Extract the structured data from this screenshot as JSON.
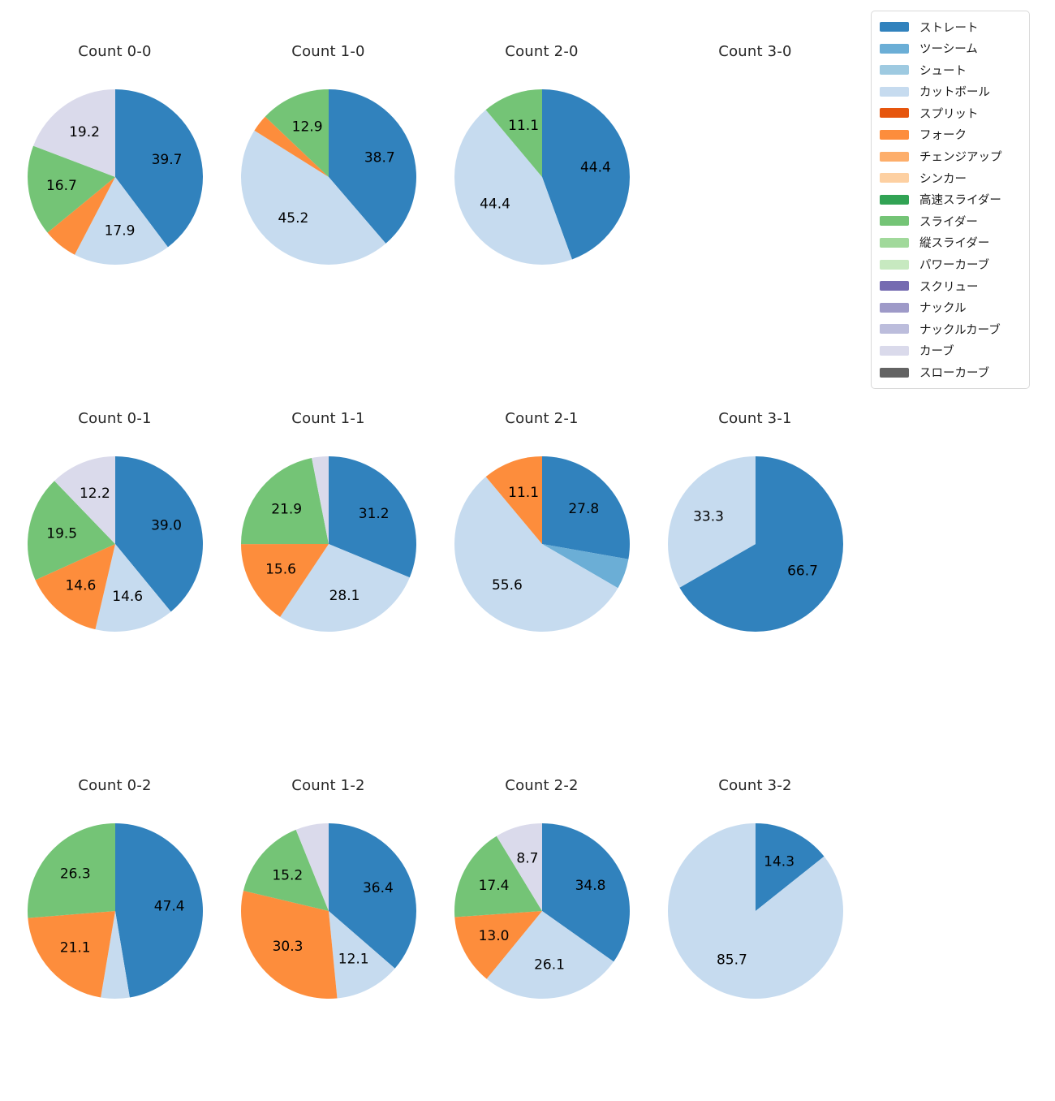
{
  "legend": {
    "items": [
      {
        "label": "ストレート",
        "color": "#3182bd"
      },
      {
        "label": "ツーシーム",
        "color": "#6baed6"
      },
      {
        "label": "シュート",
        "color": "#9ecae1"
      },
      {
        "label": "カットボール",
        "color": "#c6dbef"
      },
      {
        "label": "スプリット",
        "color": "#e6550d"
      },
      {
        "label": "フォーク",
        "color": "#fd8d3c"
      },
      {
        "label": "チェンジアップ",
        "color": "#fdae6b"
      },
      {
        "label": "シンカー",
        "color": "#fdd0a2"
      },
      {
        "label": "高速スライダー",
        "color": "#31a354"
      },
      {
        "label": "スライダー",
        "color": "#74c476"
      },
      {
        "label": "縦スライダー",
        "color": "#a1d99b"
      },
      {
        "label": "パワーカーブ",
        "color": "#c7e9c0"
      },
      {
        "label": "スクリュー",
        "color": "#756bb1"
      },
      {
        "label": "ナックル",
        "color": "#9e9ac8"
      },
      {
        "label": "ナックルカーブ",
        "color": "#bcbddc"
      },
      {
        "label": "カーブ",
        "color": "#dadaeb"
      },
      {
        "label": "スローカーブ",
        "color": "#636363"
      }
    ]
  },
  "chart_data": [
    {
      "type": "pie",
      "title": "Count 0-0",
      "start_angle": 90,
      "clockwise": true,
      "slices": [
        {
          "name": "ストレート",
          "value": 39.7,
          "label": "39.7"
        },
        {
          "name": "カットボール",
          "value": 17.9,
          "label": "17.9"
        },
        {
          "name": "フォーク",
          "value": 6.4,
          "label": ""
        },
        {
          "name": "スライダー",
          "value": 16.7,
          "label": "16.7"
        },
        {
          "name": "カーブ",
          "value": 19.2,
          "label": "19.2"
        }
      ]
    },
    {
      "type": "pie",
      "title": "Count 1-0",
      "start_angle": 90,
      "clockwise": true,
      "slices": [
        {
          "name": "ストレート",
          "value": 38.7,
          "label": "38.7"
        },
        {
          "name": "カットボール",
          "value": 45.2,
          "label": "45.2"
        },
        {
          "name": "フォーク",
          "value": 3.2,
          "label": ""
        },
        {
          "name": "スライダー",
          "value": 12.9,
          "label": "12.9"
        }
      ]
    },
    {
      "type": "pie",
      "title": "Count 2-0",
      "start_angle": 90,
      "clockwise": true,
      "slices": [
        {
          "name": "ストレート",
          "value": 44.4,
          "label": "44.4"
        },
        {
          "name": "カットボール",
          "value": 44.4,
          "label": "44.4"
        },
        {
          "name": "スライダー",
          "value": 11.1,
          "label": "11.1"
        }
      ]
    },
    {
      "type": "pie",
      "title": "Count 3-0",
      "start_angle": 90,
      "clockwise": true,
      "slices": []
    },
    {
      "type": "pie",
      "title": "Count 0-1",
      "start_angle": 90,
      "clockwise": true,
      "slices": [
        {
          "name": "ストレート",
          "value": 39.0,
          "label": "39.0"
        },
        {
          "name": "カットボール",
          "value": 14.6,
          "label": "14.6"
        },
        {
          "name": "フォーク",
          "value": 14.6,
          "label": "14.6"
        },
        {
          "name": "スライダー",
          "value": 19.5,
          "label": "19.5"
        },
        {
          "name": "カーブ",
          "value": 12.2,
          "label": "12.2"
        }
      ]
    },
    {
      "type": "pie",
      "title": "Count 1-1",
      "start_angle": 90,
      "clockwise": true,
      "slices": [
        {
          "name": "ストレート",
          "value": 31.2,
          "label": "31.2"
        },
        {
          "name": "カットボール",
          "value": 28.1,
          "label": "28.1"
        },
        {
          "name": "フォーク",
          "value": 15.6,
          "label": "15.6"
        },
        {
          "name": "スライダー",
          "value": 21.9,
          "label": "21.9"
        },
        {
          "name": "カーブ",
          "value": 3.1,
          "label": ""
        }
      ]
    },
    {
      "type": "pie",
      "title": "Count 2-1",
      "start_angle": 90,
      "clockwise": true,
      "slices": [
        {
          "name": "ストレート",
          "value": 27.8,
          "label": "27.8"
        },
        {
          "name": "ツーシーム",
          "value": 5.6,
          "label": ""
        },
        {
          "name": "カットボール",
          "value": 55.6,
          "label": "55.6"
        },
        {
          "name": "フォーク",
          "value": 11.1,
          "label": "11.1"
        }
      ]
    },
    {
      "type": "pie",
      "title": "Count 3-1",
      "start_angle": 90,
      "clockwise": true,
      "slices": [
        {
          "name": "ストレート",
          "value": 66.7,
          "label": "66.7"
        },
        {
          "name": "カットボール",
          "value": 33.3,
          "label": "33.3"
        }
      ]
    },
    {
      "type": "pie",
      "title": "Count 0-2",
      "start_angle": 90,
      "clockwise": true,
      "slices": [
        {
          "name": "ストレート",
          "value": 47.4,
          "label": "47.4"
        },
        {
          "name": "カットボール",
          "value": 5.3,
          "label": ""
        },
        {
          "name": "フォーク",
          "value": 21.1,
          "label": "21.1"
        },
        {
          "name": "スライダー",
          "value": 26.3,
          "label": "26.3"
        }
      ]
    },
    {
      "type": "pie",
      "title": "Count 1-2",
      "start_angle": 90,
      "clockwise": true,
      "slices": [
        {
          "name": "ストレート",
          "value": 36.4,
          "label": "36.4"
        },
        {
          "name": "カットボール",
          "value": 12.1,
          "label": "12.1"
        },
        {
          "name": "フォーク",
          "value": 30.3,
          "label": "30.3"
        },
        {
          "name": "スライダー",
          "value": 15.2,
          "label": "15.2"
        },
        {
          "name": "カーブ",
          "value": 6.1,
          "label": ""
        }
      ]
    },
    {
      "type": "pie",
      "title": "Count 2-2",
      "start_angle": 90,
      "clockwise": true,
      "slices": [
        {
          "name": "ストレート",
          "value": 34.8,
          "label": "34.8"
        },
        {
          "name": "カットボール",
          "value": 26.1,
          "label": "26.1"
        },
        {
          "name": "フォーク",
          "value": 13.0,
          "label": "13.0"
        },
        {
          "name": "スライダー",
          "value": 17.4,
          "label": "17.4"
        },
        {
          "name": "カーブ",
          "value": 8.7,
          "label": "8.7"
        }
      ]
    },
    {
      "type": "pie",
      "title": "Count 3-2",
      "start_angle": 90,
      "clockwise": true,
      "slices": [
        {
          "name": "ストレート",
          "value": 14.3,
          "label": "14.3"
        },
        {
          "name": "カットボール",
          "value": 85.7,
          "label": "85.7"
        }
      ]
    }
  ]
}
